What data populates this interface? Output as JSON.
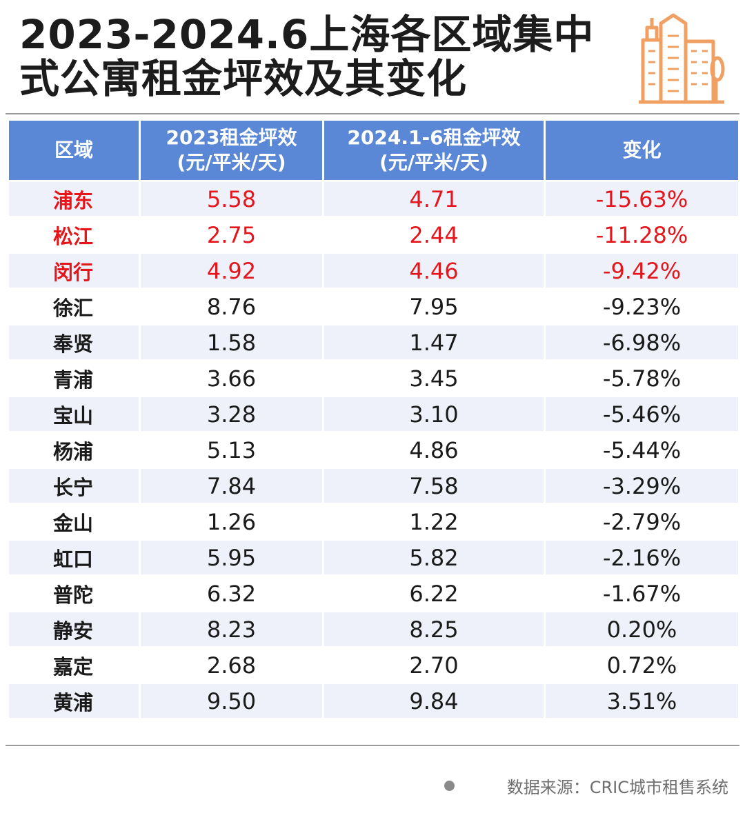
{
  "title": {
    "line1": "2023-2024.6上海各区域集中",
    "line2": "式公寓租金坪效及其变化"
  },
  "logo_icon": "city-buildings-icon",
  "colors": {
    "header_bg": "#5a88d6",
    "header_text": "#ffffff",
    "highlight_text": "#e4151b",
    "stripe": "#eef0fa",
    "logo": "#f0a063"
  },
  "chart_data": {
    "type": "table",
    "columns": [
      "区域",
      "2023租金坪效\n(元/平米/天)",
      "2024.1-6租金坪效\n(元/平米/天)",
      "变化"
    ],
    "rows": [
      {
        "area": "浦东",
        "v2023": "5.58",
        "v2024": "4.71",
        "change": "-15.63%",
        "highlight": true
      },
      {
        "area": "松江",
        "v2023": "2.75",
        "v2024": "2.44",
        "change": "-11.28%",
        "highlight": true
      },
      {
        "area": "闵行",
        "v2023": "4.92",
        "v2024": "4.46",
        "change": "-9.42%",
        "highlight": true
      },
      {
        "area": "徐汇",
        "v2023": "8.76",
        "v2024": "7.95",
        "change": "-9.23%",
        "highlight": false
      },
      {
        "area": "奉贤",
        "v2023": "1.58",
        "v2024": "1.47",
        "change": "-6.98%",
        "highlight": false
      },
      {
        "area": "青浦",
        "v2023": "3.66",
        "v2024": "3.45",
        "change": "-5.78%",
        "highlight": false
      },
      {
        "area": "宝山",
        "v2023": "3.28",
        "v2024": "3.10",
        "change": "-5.46%",
        "highlight": false
      },
      {
        "area": "杨浦",
        "v2023": "5.13",
        "v2024": "4.86",
        "change": "-5.44%",
        "highlight": false
      },
      {
        "area": "长宁",
        "v2023": "7.84",
        "v2024": "7.58",
        "change": "-3.29%",
        "highlight": false
      },
      {
        "area": "金山",
        "v2023": "1.26",
        "v2024": "1.22",
        "change": "-2.79%",
        "highlight": false
      },
      {
        "area": "虹口",
        "v2023": "5.95",
        "v2024": "5.82",
        "change": "-2.16%",
        "highlight": false
      },
      {
        "area": "普陀",
        "v2023": "6.32",
        "v2024": "6.22",
        "change": "-1.67%",
        "highlight": false
      },
      {
        "area": "静安",
        "v2023": "8.23",
        "v2024": "8.25",
        "change": "0.20%",
        "highlight": false
      },
      {
        "area": "嘉定",
        "v2023": "2.68",
        "v2024": "2.70",
        "change": "0.72%",
        "highlight": false
      },
      {
        "area": "黄浦",
        "v2023": "9.50",
        "v2024": "9.84",
        "change": "3.51%",
        "highlight": false
      }
    ]
  },
  "source": "数据来源：CRIC城市租售系统"
}
